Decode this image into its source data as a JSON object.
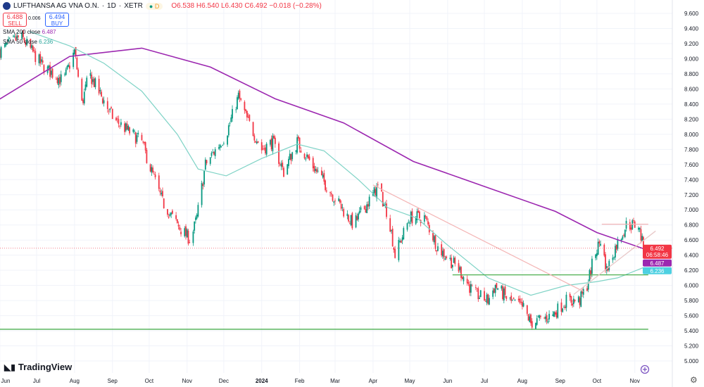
{
  "header": {
    "symbol": "LUFTHANSA AG VNA O.N.",
    "interval": "1D",
    "exchange": "XETR",
    "sep": "·",
    "session_badge": "D",
    "ohlc": {
      "open": "O6.538",
      "high": "H6.540",
      "low": "L6.430",
      "close": "C6.492",
      "change": "−0.018 (−0.28%)"
    }
  },
  "trade": {
    "sell_price": "6.488",
    "sell_label": "SELL",
    "spread": "0.006",
    "buy_price": "6.494",
    "buy_label": "BUY"
  },
  "indicators": [
    {
      "label": "SMA 200 close",
      "value": "6.487",
      "color": "#9c27b0"
    },
    {
      "label": "SMA 50 close",
      "value": "6.236",
      "color": "#4dd0c1"
    }
  ],
  "price_tags": {
    "last": "6.492",
    "countdown": "06:58:46",
    "sma200": "6.487",
    "sma50": "6.236"
  },
  "branding": "TradingView",
  "colors": {
    "up": "#089981",
    "down": "#f23645",
    "sma200": "#9c27b0",
    "sma50": "#7fd3c6",
    "support": "#4caf50"
  },
  "chart_data": {
    "type": "candlestick",
    "y_ticks": [
      "9.600",
      "9.400",
      "9.200",
      "9.000",
      "8.800",
      "8.600",
      "8.400",
      "8.200",
      "8.000",
      "7.800",
      "7.600",
      "7.400",
      "7.200",
      "7.000",
      "6.800",
      "6.600",
      "6.400",
      "6.200",
      "6.000",
      "5.800",
      "5.600",
      "5.400",
      "5.200",
      "5.000"
    ],
    "ylim": [
      5.0,
      9.6
    ],
    "x_ticks": [
      {
        "label": "Jun",
        "date": "2023-06-01"
      },
      {
        "label": "Jul",
        "date": "2023-07-01"
      },
      {
        "label": "Aug",
        "date": "2023-08-01"
      },
      {
        "label": "Sep",
        "date": "2023-09-01"
      },
      {
        "label": "Oct",
        "date": "2023-10-01"
      },
      {
        "label": "Nov",
        "date": "2023-11-01"
      },
      {
        "label": "Dec",
        "date": "2023-12-01"
      },
      {
        "label": "2024",
        "date": "2024-01-01"
      },
      {
        "label": "Feb",
        "date": "2024-02-01"
      },
      {
        "label": "Mar",
        "date": "2024-03-01"
      },
      {
        "label": "Apr",
        "date": "2024-04-01"
      },
      {
        "label": "May",
        "date": "2024-05-01"
      },
      {
        "label": "Jun",
        "date": "2024-06-01"
      },
      {
        "label": "Jul",
        "date": "2024-07-01"
      },
      {
        "label": "Aug",
        "date": "2024-08-01"
      },
      {
        "label": "Sep",
        "date": "2024-09-01"
      },
      {
        "label": "Oct",
        "date": "2024-10-01"
      },
      {
        "label": "Nov",
        "date": "2024-11-01"
      }
    ],
    "close_path": [
      [
        "2023-06-01",
        9.1
      ],
      [
        "2023-06-18",
        9.3
      ],
      [
        "2023-07-06",
        8.9
      ],
      [
        "2023-07-23",
        8.7
      ],
      [
        "2023-08-01",
        9.1
      ],
      [
        "2023-08-07",
        8.4
      ],
      [
        "2023-08-13",
        8.8
      ],
      [
        "2023-09-02",
        8.2
      ],
      [
        "2023-09-25",
        7.9
      ],
      [
        "2023-10-01",
        7.6
      ],
      [
        "2023-10-12",
        7.1
      ],
      [
        "2023-10-24",
        6.8
      ],
      [
        "2023-11-04",
        6.6
      ],
      [
        "2023-11-09",
        6.9
      ],
      [
        "2023-11-16",
        7.6
      ],
      [
        "2023-12-03",
        8.0
      ],
      [
        "2023-12-13",
        8.5
      ],
      [
        "2023-12-20",
        8.2
      ],
      [
        "2024-01-01",
        7.8
      ],
      [
        "2024-01-10",
        7.9
      ],
      [
        "2024-01-19",
        7.5
      ],
      [
        "2024-01-30",
        7.9
      ],
      [
        "2024-02-11",
        7.6
      ],
      [
        "2024-02-28",
        7.2
      ],
      [
        "2024-03-16",
        6.8
      ],
      [
        "2024-03-28",
        7.1
      ],
      [
        "2024-04-05",
        7.3
      ],
      [
        "2024-04-14",
        6.9
      ],
      [
        "2024-04-19",
        6.4
      ],
      [
        "2024-05-01",
        6.9
      ],
      [
        "2024-05-13",
        6.9
      ],
      [
        "2024-05-24",
        6.5
      ],
      [
        "2024-06-11",
        6.2
      ],
      [
        "2024-06-22",
        5.9
      ],
      [
        "2024-07-04",
        5.8
      ],
      [
        "2024-07-10",
        6.0
      ],
      [
        "2024-07-21",
        5.8
      ],
      [
        "2024-08-02",
        5.7
      ],
      [
        "2024-08-08",
        5.5
      ],
      [
        "2024-08-25",
        5.6
      ],
      [
        "2024-09-06",
        5.8
      ],
      [
        "2024-09-17",
        5.8
      ],
      [
        "2024-09-23",
        6.0
      ],
      [
        "2024-09-29",
        6.4
      ],
      [
        "2024-10-04",
        6.6
      ],
      [
        "2024-10-09",
        6.2
      ],
      [
        "2024-10-16",
        6.5
      ],
      [
        "2024-10-25",
        6.8
      ],
      [
        "2024-11-04",
        6.8
      ],
      [
        "2024-11-08",
        6.492
      ]
    ],
    "sma200": [
      [
        "2023-05-15",
        8.3
      ],
      [
        "2023-07-28",
        9.03
      ],
      [
        "2023-09-25",
        9.14
      ],
      [
        "2023-11-20",
        8.89
      ],
      [
        "2024-01-12",
        8.47
      ],
      [
        "2024-03-08",
        8.15
      ],
      [
        "2024-05-04",
        7.64
      ],
      [
        "2024-07-01",
        7.31
      ],
      [
        "2024-08-28",
        6.98
      ],
      [
        "2024-10-01",
        6.7
      ],
      [
        "2024-11-08",
        6.487
      ]
    ],
    "sma50": [
      [
        "2023-06-25",
        9.36
      ],
      [
        "2023-07-28",
        9.17
      ],
      [
        "2023-08-25",
        8.94
      ],
      [
        "2023-09-25",
        8.57
      ],
      [
        "2023-10-24",
        8.0
      ],
      [
        "2023-11-10",
        7.54
      ],
      [
        "2023-12-03",
        7.45
      ],
      [
        "2024-01-01",
        7.68
      ],
      [
        "2024-01-30",
        7.87
      ],
      [
        "2024-02-21",
        7.78
      ],
      [
        "2024-03-20",
        7.4
      ],
      [
        "2024-04-13",
        7.03
      ],
      [
        "2024-05-07",
        6.89
      ],
      [
        "2024-05-30",
        6.56
      ],
      [
        "2024-07-04",
        6.1
      ],
      [
        "2024-08-08",
        5.87
      ],
      [
        "2024-09-06",
        6.0
      ],
      [
        "2024-10-01",
        6.05
      ],
      [
        "2024-10-18",
        6.1
      ],
      [
        "2024-11-08",
        6.236
      ]
    ],
    "drawings": [
      {
        "kind": "horizontal",
        "price": 6.14,
        "from": "2024-06-05",
        "to": "2024-11-12",
        "color": "#4caf50"
      },
      {
        "kind": "horizontal",
        "price": 5.42,
        "from": "2023-05-15",
        "to": "2024-11-12",
        "color": "#4caf50"
      },
      {
        "kind": "horizontal",
        "price": 6.81,
        "from": "2024-10-05",
        "to": "2024-11-12",
        "color": "#f4b6b6"
      },
      {
        "kind": "trend",
        "p1": [
          "2024-04-01",
          7.33
        ],
        "p2": [
          "2024-09-20",
          5.92
        ],
        "color": "#f4b6b6"
      },
      {
        "kind": "trend",
        "p1": [
          "2024-09-12",
          5.88
        ],
        "p2": [
          "2024-11-18",
          6.72
        ],
        "color": "#e8c8c8"
      }
    ]
  }
}
